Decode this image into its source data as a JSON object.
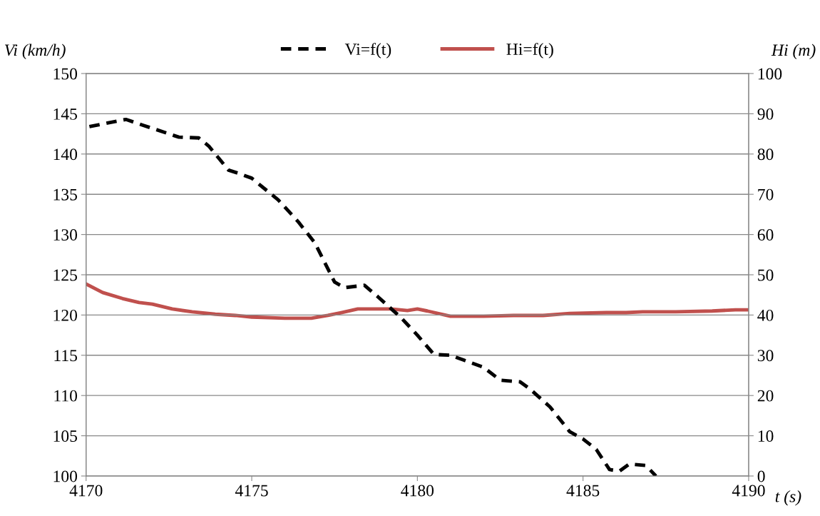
{
  "chart_data": {
    "type": "line",
    "xlabel": "t (s)",
    "ylabel": "Vi (km/h)",
    "y2label": "Hi (m)",
    "xlim": [
      4170,
      4190
    ],
    "xticks": [
      4170,
      4175,
      4180,
      4185,
      4190
    ],
    "ylim": [
      100,
      150
    ],
    "yticks": [
      100,
      105,
      110,
      115,
      120,
      125,
      130,
      135,
      140,
      145,
      150
    ],
    "y2lim": [
      0,
      100
    ],
    "y2ticks": [
      0,
      10,
      20,
      30,
      40,
      50,
      60,
      70,
      80,
      90,
      100
    ],
    "grid": "y",
    "legend": "top",
    "marker": "none",
    "series": [
      {
        "name": "Vi=f(t)",
        "color": "#000000",
        "line_style": "dashed",
        "x": [
          4170.1,
          4171.2,
          4171.7,
          4172.8,
          4173.4,
          4173.7,
          4174.3,
          4174.6,
          4175.0,
          4175.8,
          4176.4,
          4176.9,
          4177.5,
          4177.8,
          4178.4,
          4178.8,
          4179.5,
          4180.0,
          4180.5,
          4181.0,
          4181.4,
          4182.0,
          4182.5,
          4183.1,
          4183.4,
          4184.0,
          4184.6,
          4185.0,
          4185.4,
          4185.8,
          4186.1,
          4186.4,
          4186.9,
          4187.2
        ],
        "values": [
          143.4,
          144.3,
          143.6,
          142.1,
          142.0,
          141.0,
          138.0,
          137.6,
          137.0,
          134.3,
          131.6,
          129.0,
          124.1,
          123.4,
          123.7,
          122.3,
          119.7,
          117.5,
          115.1,
          115.0,
          114.4,
          113.5,
          111.9,
          111.7,
          110.8,
          108.6,
          105.5,
          104.6,
          103.3,
          100.8,
          100.6,
          101.5,
          101.3,
          100.0
        ]
      },
      {
        "name": "Hi=f(t)",
        "color": "#c0504d",
        "line_style": "solid",
        "axis": "y2",
        "x": [
          4170,
          4170.5,
          4171.1,
          4171.6,
          4172.0,
          4172.6,
          4173.2,
          4173.9,
          4174.5,
          4175.0,
          4176.0,
          4176.8,
          4177.3,
          4177.7,
          4178.2,
          4179.2,
          4179.7,
          4180.0,
          4180.3,
          4181.0,
          4182.0,
          4182.9,
          4183.8,
          4184.6,
          4185.7,
          4186.3,
          4186.8,
          4187.8,
          4188.9,
          4189.6,
          4190
        ],
        "values": [
          47.7,
          45.6,
          44.1,
          43.1,
          42.7,
          41.5,
          40.8,
          40.2,
          39.9,
          39.5,
          39.2,
          39.2,
          39.9,
          40.6,
          41.5,
          41.5,
          41.1,
          41.5,
          41.0,
          39.7,
          39.7,
          39.9,
          39.9,
          40.4,
          40.6,
          40.6,
          40.8,
          40.8,
          41.0,
          41.3,
          41.3
        ]
      }
    ]
  }
}
